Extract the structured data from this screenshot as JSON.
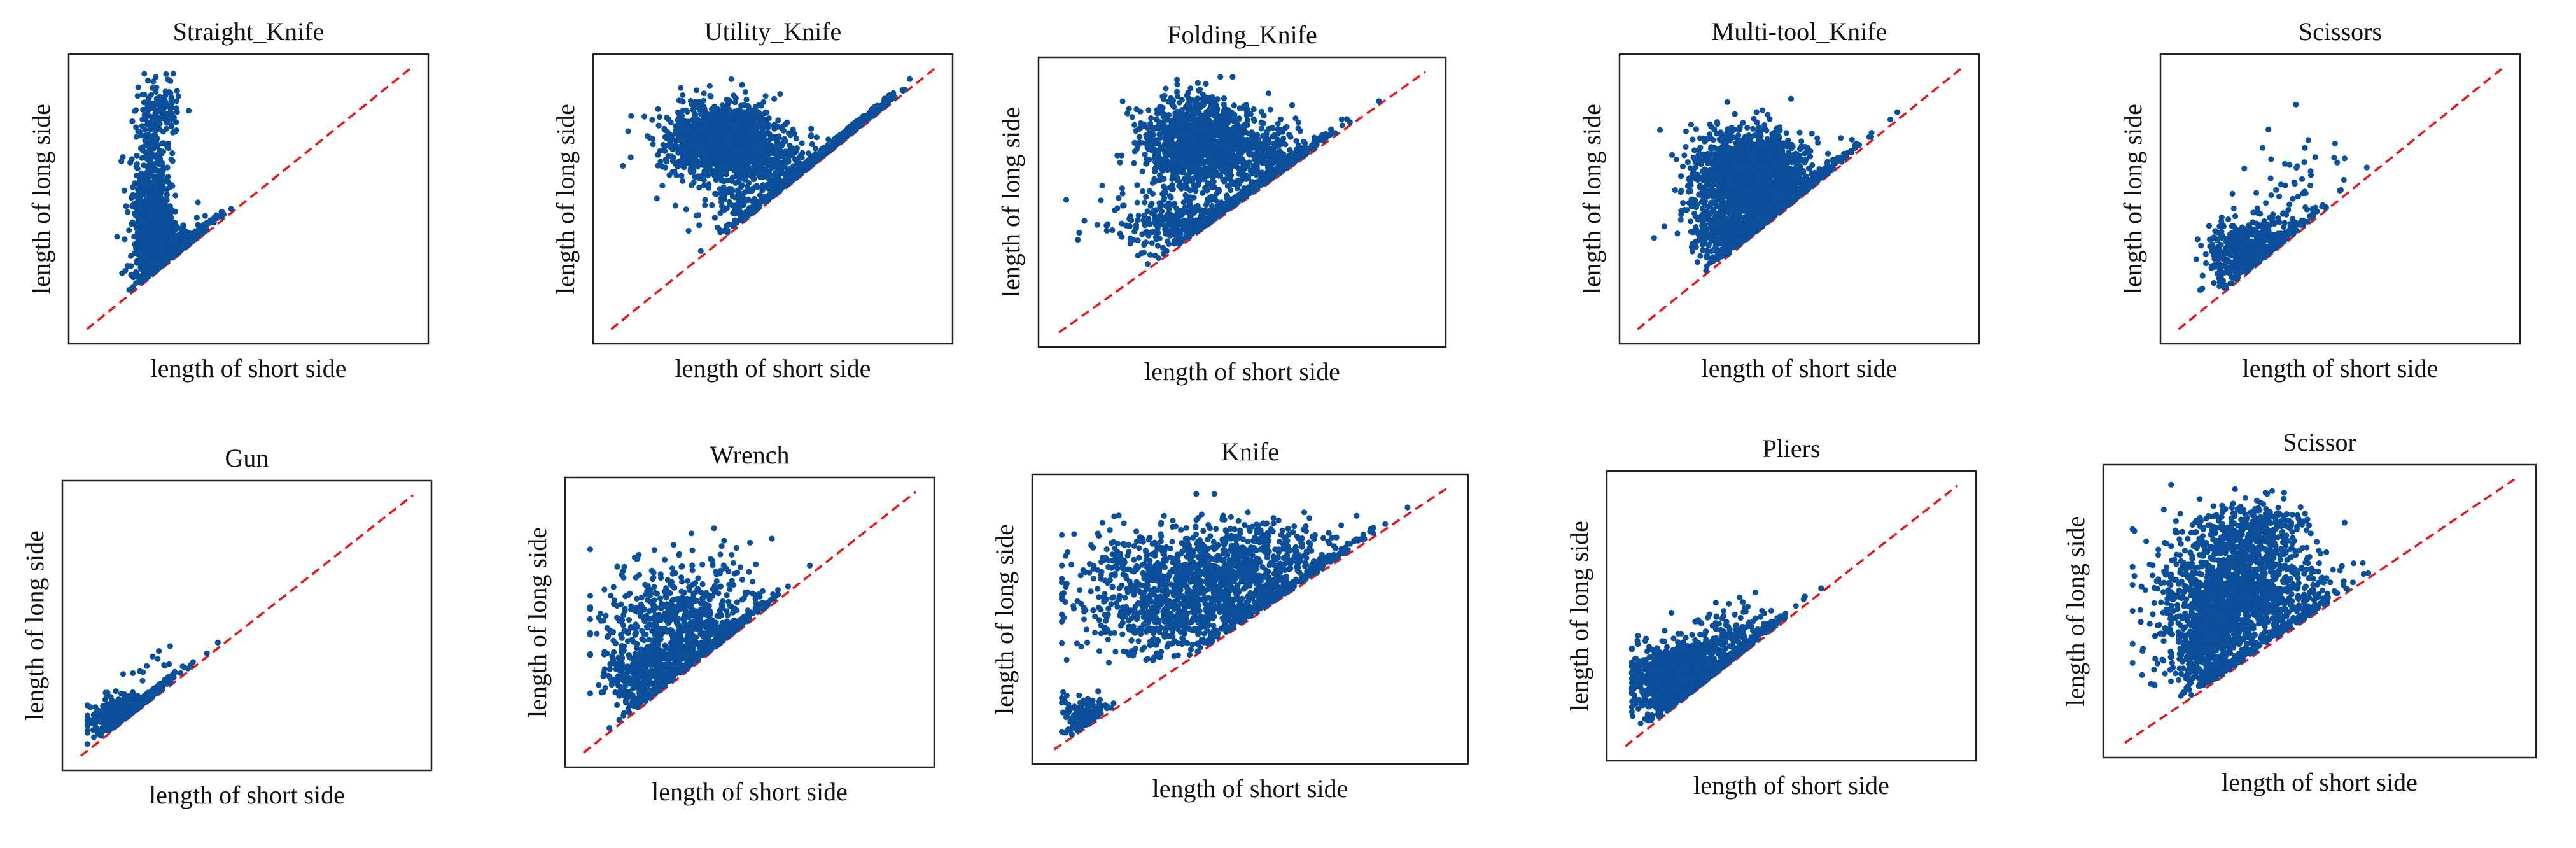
{
  "chart_data": [
    {
      "type": "scatter",
      "title": "Straight_Knife",
      "xlabel": "length of short side",
      "ylabel": "length of long side",
      "xlim": [
        0,
        100
      ],
      "ylim": [
        0,
        100
      ],
      "grid": false,
      "reference_line": "y = x (red dashed)",
      "marker_color": "#0b4f9a",
      "point_clusters": [
        {
          "cx": 20,
          "cy": 40,
          "sx": 3,
          "sy": 14,
          "n": 900
        },
        {
          "cx": 22,
          "cy": 82,
          "sx": 3,
          "sy": 7,
          "n": 160
        },
        {
          "cx": 28,
          "cy": 28,
          "sx": 6,
          "sy": 7,
          "n": 500
        }
      ]
    },
    {
      "type": "scatter",
      "title": "Utility_Knife",
      "xlabel": "length of short side",
      "ylabel": "length of long side",
      "xlim": [
        0,
        100
      ],
      "ylim": [
        0,
        100
      ],
      "grid": false,
      "reference_line": "y = x (red dashed)",
      "marker_color": "#0b4f9a",
      "point_clusters": [
        {
          "cx": 35,
          "cy": 72,
          "sx": 9,
          "sy": 7,
          "n": 1400
        },
        {
          "cx": 55,
          "cy": 50,
          "sx": 14,
          "sy": 10,
          "n": 700
        },
        {
          "cx": 72,
          "cy": 60,
          "sx": 8,
          "sy": 6,
          "n": 250
        }
      ]
    },
    {
      "type": "scatter",
      "title": "Folding_Knife",
      "xlabel": "length of short side",
      "ylabel": "length of long side",
      "xlim": [
        0,
        100
      ],
      "ylim": [
        0,
        100
      ],
      "grid": false,
      "reference_line": "y = x (red dashed)",
      "marker_color": "#0b4f9a",
      "point_clusters": [
        {
          "cx": 38,
          "cy": 72,
          "sx": 8,
          "sy": 9,
          "n": 1200
        },
        {
          "cx": 40,
          "cy": 42,
          "sx": 12,
          "sy": 6,
          "n": 600
        },
        {
          "cx": 58,
          "cy": 65,
          "sx": 8,
          "sy": 8,
          "n": 400
        }
      ]
    },
    {
      "type": "scatter",
      "title": "Multi-tool_Knife",
      "xlabel": "length of short side",
      "ylabel": "length of long side",
      "xlim": [
        0,
        100
      ],
      "ylim": [
        0,
        100
      ],
      "grid": false,
      "reference_line": "y = x (red dashed)",
      "marker_color": "#0b4f9a",
      "point_clusters": [
        {
          "cx": 35,
          "cy": 60,
          "sx": 8,
          "sy": 8,
          "n": 1500
        },
        {
          "cx": 30,
          "cy": 38,
          "sx": 7,
          "sy": 8,
          "n": 500
        },
        {
          "cx": 42,
          "cy": 52,
          "sx": 12,
          "sy": 10,
          "n": 500
        }
      ]
    },
    {
      "type": "scatter",
      "title": "Scissors",
      "xlabel": "length of short side",
      "ylabel": "length of long side",
      "xlim": [
        0,
        100
      ],
      "ylim": [
        0,
        100
      ],
      "grid": false,
      "reference_line": "y = x (red dashed)",
      "marker_color": "#0b4f9a",
      "point_clusters": [
        {
          "cx": 22,
          "cy": 28,
          "sx": 6,
          "sy": 6,
          "n": 700
        },
        {
          "cx": 35,
          "cy": 50,
          "sx": 9,
          "sy": 13,
          "n": 90
        }
      ]
    },
    {
      "type": "scatter",
      "title": "Gun",
      "xlabel": "length of short side",
      "ylabel": "length of long side",
      "xlim": [
        0,
        100
      ],
      "ylim": [
        0,
        100
      ],
      "grid": false,
      "reference_line": "y = x (red dashed)",
      "marker_color": "#0b4f9a",
      "point_clusters": [
        {
          "cx": 14,
          "cy": 14,
          "sx": 5,
          "sy": 4,
          "n": 800
        },
        {
          "cx": 25,
          "cy": 30,
          "sx": 6,
          "sy": 8,
          "n": 40
        }
      ]
    },
    {
      "type": "scatter",
      "title": "Wrench",
      "xlabel": "length of short side",
      "ylabel": "length of long side",
      "xlim": [
        0,
        100
      ],
      "ylim": [
        0,
        100
      ],
      "grid": false,
      "reference_line": "y = x (red dashed)",
      "marker_color": "#0b4f9a",
      "point_clusters": [
        {
          "cx": 30,
          "cy": 45,
          "sx": 12,
          "sy": 13,
          "n": 1000
        },
        {
          "cx": 18,
          "cy": 28,
          "sx": 5,
          "sy": 6,
          "n": 300
        }
      ]
    },
    {
      "type": "scatter",
      "title": "Knife",
      "xlabel": "length of short side",
      "ylabel": "length of long side",
      "xlim": [
        0,
        100
      ],
      "ylim": [
        0,
        100
      ],
      "grid": false,
      "reference_line": "y = x (red dashed)",
      "marker_color": "#0b4f9a",
      "point_clusters": [
        {
          "cx": 38,
          "cy": 60,
          "sx": 15,
          "sy": 12,
          "n": 1400
        },
        {
          "cx": 8,
          "cy": 12,
          "sx": 3,
          "sy": 4,
          "n": 150
        },
        {
          "cx": 50,
          "cy": 75,
          "sx": 13,
          "sy": 6,
          "n": 300
        }
      ]
    },
    {
      "type": "scatter",
      "title": "Pliers",
      "xlabel": "length of short side",
      "ylabel": "length of long side",
      "xlim": [
        0,
        100
      ],
      "ylim": [
        0,
        100
      ],
      "grid": false,
      "reference_line": "y = x (red dashed)",
      "marker_color": "#0b4f9a",
      "point_clusters": [
        {
          "cx": 18,
          "cy": 25,
          "sx": 7,
          "sy": 6,
          "n": 2000
        },
        {
          "cx": 35,
          "cy": 40,
          "sx": 8,
          "sy": 7,
          "n": 250
        }
      ]
    },
    {
      "type": "scatter",
      "title": "Scissor",
      "xlabel": "length of short side",
      "ylabel": "length of long side",
      "xlim": [
        0,
        100
      ],
      "ylim": [
        0,
        100
      ],
      "grid": false,
      "reference_line": "y = x (red dashed)",
      "marker_color": "#0b4f9a",
      "point_clusters": [
        {
          "cx": 30,
          "cy": 58,
          "sx": 10,
          "sy": 13,
          "n": 1500
        },
        {
          "cx": 22,
          "cy": 35,
          "sx": 6,
          "sy": 10,
          "n": 500
        },
        {
          "cx": 32,
          "cy": 82,
          "sx": 6,
          "sy": 5,
          "n": 200
        }
      ]
    }
  ]
}
